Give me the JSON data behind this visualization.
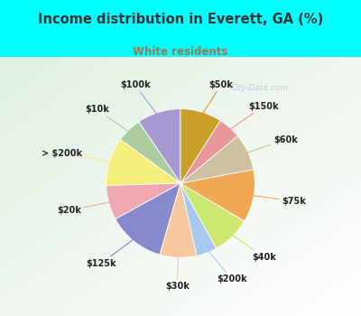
{
  "title": "Income distribution in Everett, GA (%)",
  "subtitle": "White residents",
  "title_color": "#333333",
  "subtitle_color": "#997755",
  "bg_cyan": "#00ffff",
  "bg_chart_color": "#d8eedc",
  "labels": [
    "$100k",
    "$10k",
    "> $200k",
    "$20k",
    "$125k",
    "$30k",
    "$200k",
    "$40k",
    "$75k",
    "$60k",
    "$150k",
    "$50k"
  ],
  "sizes": [
    9.5,
    5.5,
    10.5,
    7.5,
    12.5,
    8.0,
    4.5,
    8.5,
    11.5,
    8.0,
    5.0,
    9.0
  ],
  "colors": [
    "#a89ad0",
    "#aacca0",
    "#f5ee78",
    "#f0a8b0",
    "#8888cc",
    "#f5c8a0",
    "#a8c8f0",
    "#cce870",
    "#f0a855",
    "#ccc0a0",
    "#e89898",
    "#c8a028"
  ],
  "startangle": 90,
  "figsize": [
    4.0,
    3.5
  ],
  "dpi": 100
}
